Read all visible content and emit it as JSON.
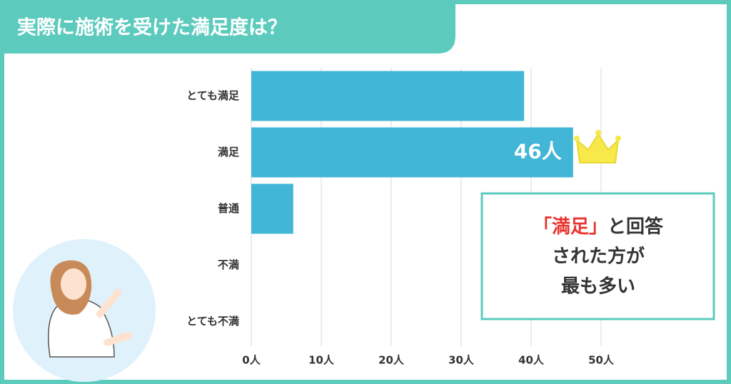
{
  "chart_data": {
    "type": "bar",
    "orientation": "horizontal",
    "title": "実際に施術を受けた満足度は？",
    "categories": [
      "とても満足",
      "満足",
      "普通",
      "不満",
      "とても不満"
    ],
    "values": [
      39,
      46,
      6,
      0,
      0
    ],
    "value_labels": [
      null,
      "46人",
      null,
      null,
      null
    ],
    "color": "#41b6d6",
    "xlim": [
      0,
      50
    ],
    "xticks": [
      {
        "value": 0,
        "label": "0人"
      },
      {
        "value": 10,
        "label": "10人"
      },
      {
        "value": 20,
        "label": "20人"
      },
      {
        "value": 30,
        "label": "30人"
      },
      {
        "value": 40,
        "label": "40人"
      },
      {
        "value": 50,
        "label": "50人"
      }
    ],
    "grid": true,
    "annotation": {
      "highlight": "「満足」",
      "lines": [
        "と回答",
        "された方が",
        "最も多い"
      ]
    }
  }
}
